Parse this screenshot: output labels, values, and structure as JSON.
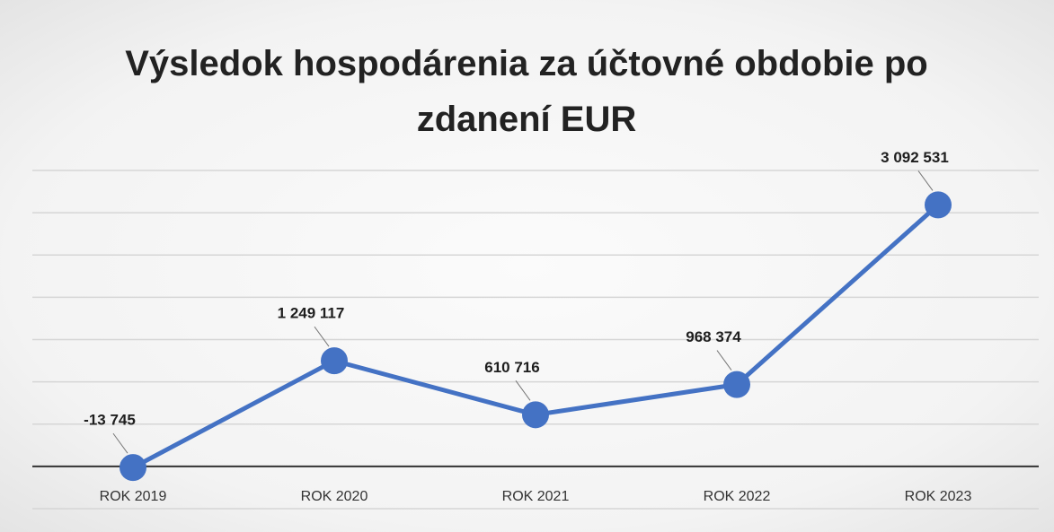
{
  "chart_data": {
    "type": "line",
    "title": "Výsledok hospodárenia za účtovné obdobie po zdanení EUR",
    "categories": [
      "ROK 2019",
      "ROK 2020",
      "ROK 2021",
      "ROK 2022",
      "ROK 2023"
    ],
    "values": [
      -13745,
      1249117,
      610716,
      968374,
      3092531
    ],
    "value_labels": [
      "-13 745",
      "1 249 117",
      "610 716",
      "968 374",
      "3 092 531"
    ],
    "color": "#4472c4",
    "ylim": [
      -500000,
      3500000
    ],
    "yticks": [
      -500000,
      0,
      500000,
      1000000,
      1500000,
      2000000,
      2500000,
      3000000,
      3500000
    ],
    "grid": true
  }
}
